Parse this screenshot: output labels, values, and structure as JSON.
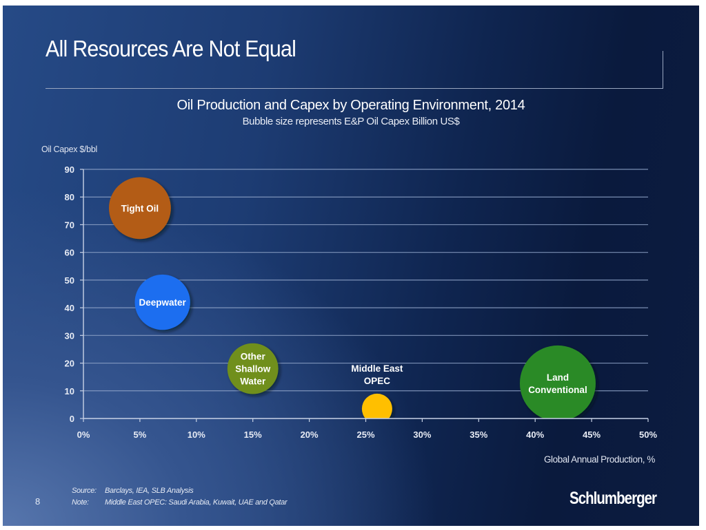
{
  "slide": {
    "title": "All Resources Are Not Equal",
    "page_number": "8",
    "footer": {
      "source_label": "Source:",
      "source_text": "Barclays, IEA, SLB Analysis",
      "note_label": "Note:",
      "note_text": "Middle East OPEC: Saudi Arabia, Kuwait, UAE and Qatar"
    },
    "logo_text": "Schlumberger"
  },
  "chart_data": {
    "type": "bubble",
    "title": "Oil Production and Capex by Operating Environment, 2014",
    "subtitle": "Bubble size represents E&P Oil Capex Billion US$",
    "xlabel": "Global Annual Production, %",
    "ylabel": "Oil Capex $/bbl",
    "xlim": [
      0,
      50
    ],
    "ylim": [
      0,
      90
    ],
    "x_ticks": [
      "0%",
      "5%",
      "10%",
      "15%",
      "20%",
      "25%",
      "30%",
      "35%",
      "40%",
      "45%",
      "50%"
    ],
    "x_tick_values": [
      0,
      5,
      10,
      15,
      20,
      25,
      30,
      35,
      40,
      45,
      50
    ],
    "y_ticks": [
      "0",
      "10",
      "20",
      "30",
      "40",
      "50",
      "60",
      "70",
      "80",
      "90"
    ],
    "y_tick_values": [
      0,
      10,
      20,
      30,
      40,
      50,
      60,
      70,
      80,
      90
    ],
    "grid": true,
    "legend": "none",
    "series": [
      {
        "name": "Tight Oil",
        "label_lines": [
          "Tight Oil"
        ],
        "x": 5,
        "y": 76,
        "size": 200,
        "color": "#b35c12",
        "label_position": "inside"
      },
      {
        "name": "Deepwater",
        "label_lines": [
          "Deepwater"
        ],
        "x": 7,
        "y": 42,
        "size": 160,
        "color": "#1a6ef0",
        "label_position": "inside"
      },
      {
        "name": "Other Shallow Water",
        "label_lines": [
          "Other",
          "Shallow",
          "Water"
        ],
        "x": 15,
        "y": 18,
        "size": 135,
        "color": "#6f8f1a",
        "label_position": "inside"
      },
      {
        "name": "Middle East OPEC",
        "label_lines": [
          "Middle East",
          "OPEC"
        ],
        "x": 26,
        "y": 3.5,
        "size": 48,
        "color": "#ffbf00",
        "label_position": "above"
      },
      {
        "name": "Land Conventional",
        "label_lines": [
          "Land",
          "Conventional"
        ],
        "x": 42,
        "y": 12.7,
        "size": 300,
        "color": "#2a8a28",
        "label_position": "inside"
      }
    ]
  }
}
